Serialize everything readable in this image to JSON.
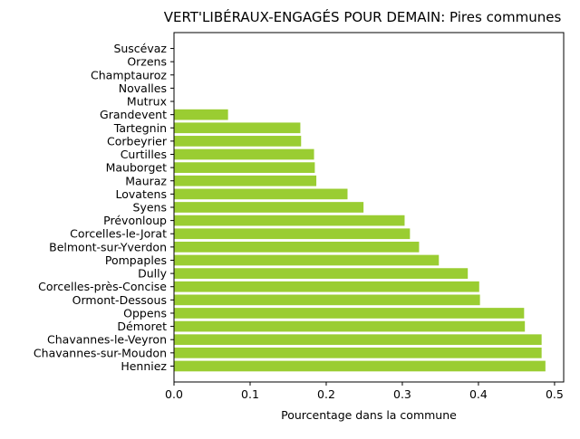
{
  "chart_data": {
    "type": "bar",
    "orientation": "horizontal",
    "title": "VERT'LIBÉRAUX-ENGAGÉS POUR DEMAIN: Pires communes",
    "xlabel": "Pourcentage dans la commune",
    "ylabel": "",
    "xlim": [
      0,
      0.512
    ],
    "xticks": [
      "0.0",
      "0.1",
      "0.2",
      "0.3",
      "0.4",
      "0.5"
    ],
    "bar_color": "#9acd32",
    "grid": false,
    "categories": [
      "Suscévaz",
      "Orzens",
      "Champtauroz",
      "Novalles",
      "Mutrux",
      "Grandevent",
      "Tartegnin",
      "Corbeyrier",
      "Curtilles",
      "Mauborget",
      "Mauraz",
      "Lovatens",
      "Syens",
      "Prévonloup",
      "Corcelles-le-Jorat",
      "Belmont-sur-Yverdon",
      "Pompaples",
      "Dully",
      "Corcelles-près-Concise",
      "Ormont-Dessous",
      "Oppens",
      "Démoret",
      "Chavannes-le-Veyron",
      "Chavannes-sur-Moudon",
      "Henniez"
    ],
    "values": [
      0,
      0,
      0,
      0,
      0,
      0.071,
      0.166,
      0.167,
      0.184,
      0.185,
      0.187,
      0.228,
      0.249,
      0.303,
      0.31,
      0.322,
      0.348,
      0.386,
      0.401,
      0.402,
      0.46,
      0.461,
      0.483,
      0.483,
      0.488
    ]
  }
}
